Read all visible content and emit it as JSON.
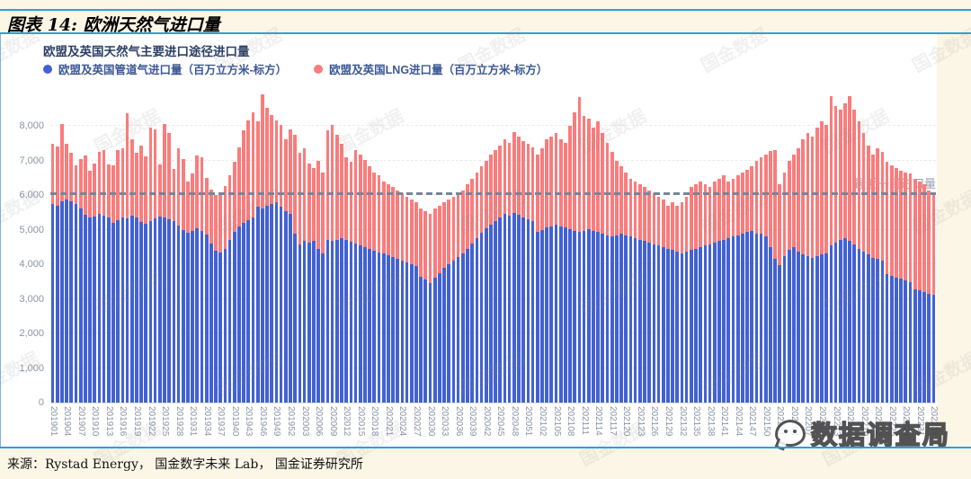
{
  "page": {
    "figure_label": "图表 14: 欧洲天然气进口量",
    "source_line": "来源：Rystad Energy， 国金数字未来 Lab， 国金证券研究所",
    "watermark_tile": "国金数据",
    "watermark_badge": "数据调查局"
  },
  "chart": {
    "subtitle": "欧盟及英国天然气主要进口途径进口量",
    "reference_line": {
      "label": "最近一周进口量",
      "value": 6000
    }
  },
  "chart_data": {
    "type": "bar",
    "stacked": true,
    "title": "欧盟及英国天然气主要进口途径进口量",
    "xlabel": "",
    "ylabel": "",
    "ylim": [
      0,
      9000
    ],
    "yticks": [
      0,
      1000,
      2000,
      3000,
      4000,
      5000,
      6000,
      7000,
      8000
    ],
    "ytick_labels": [
      "0",
      "1,000",
      "2,000",
      "3,000",
      "4,000",
      "5,000",
      "6,000",
      "7,000",
      "8,000"
    ],
    "xtick_every": 3,
    "grid": "dashed-horizontal",
    "legend_position": "top-left",
    "reference_line_y": 6000,
    "categories": [
      201901,
      201902,
      201903,
      201904,
      201905,
      201906,
      201907,
      201908,
      201909,
      201910,
      201911,
      201912,
      201913,
      201914,
      201915,
      201916,
      201917,
      201918,
      201919,
      201920,
      201921,
      201922,
      201923,
      201924,
      201925,
      201926,
      201927,
      201928,
      201929,
      201930,
      201931,
      201932,
      201933,
      201934,
      201935,
      201936,
      201937,
      201938,
      201939,
      201940,
      201941,
      201942,
      201943,
      201944,
      201945,
      201946,
      201947,
      201948,
      201949,
      201950,
      201951,
      201952,
      202001,
      202002,
      202003,
      202004,
      202005,
      202006,
      202007,
      202008,
      202009,
      202010,
      202011,
      202012,
      202013,
      202014,
      202015,
      202016,
      202017,
      202018,
      202019,
      202020,
      202021,
      202022,
      202023,
      202024,
      202025,
      202026,
      202027,
      202028,
      202029,
      202030,
      202031,
      202032,
      202033,
      202034,
      202035,
      202036,
      202037,
      202038,
      202039,
      202040,
      202041,
      202042,
      202043,
      202044,
      202045,
      202046,
      202047,
      202048,
      202049,
      202050,
      202051,
      202052,
      202101,
      202102,
      202103,
      202104,
      202105,
      202106,
      202107,
      202108,
      202109,
      202110,
      202111,
      202112,
      202113,
      202114,
      202115,
      202116,
      202117,
      202118,
      202119,
      202120,
      202121,
      202122,
      202123,
      202124,
      202125,
      202126,
      202127,
      202128,
      202129,
      202130,
      202131,
      202132,
      202133,
      202134,
      202135,
      202136,
      202137,
      202138,
      202139,
      202140,
      202141,
      202142,
      202143,
      202144,
      202145,
      202146,
      202147,
      202148,
      202149,
      202150,
      202151,
      202152,
      202201,
      202202,
      202203,
      202204,
      202205,
      202206,
      202207,
      202208,
      202209,
      202210,
      202211,
      202212,
      202213,
      202214,
      202215,
      202216,
      202217,
      202218,
      202219,
      202220,
      202221,
      202222,
      202223,
      202224,
      202225,
      202226,
      202227,
      202228,
      202229,
      202230,
      202231,
      202232,
      202233,
      202234
    ],
    "series": [
      {
        "name": "欧盟及英国管道气进口量（百万立方米-标方）",
        "color": "#4261D4",
        "values": [
          5750,
          5680,
          5810,
          5870,
          5810,
          5750,
          5600,
          5440,
          5340,
          5390,
          5450,
          5400,
          5350,
          5200,
          5280,
          5360,
          5330,
          5400,
          5350,
          5210,
          5180,
          5260,
          5330,
          5390,
          5350,
          5300,
          5240,
          5120,
          5000,
          4900,
          4950,
          5050,
          4950,
          4850,
          4600,
          4400,
          4350,
          4450,
          4700,
          4930,
          5100,
          5190,
          5270,
          5360,
          5660,
          5620,
          5700,
          5750,
          5790,
          5660,
          5530,
          5450,
          4880,
          4580,
          4670,
          4620,
          4670,
          4450,
          4320,
          4710,
          4670,
          4710,
          4750,
          4700,
          4650,
          4600,
          4550,
          4500,
          4450,
          4400,
          4350,
          4300,
          4250,
          4200,
          4150,
          4100,
          4050,
          4000,
          3950,
          3650,
          3550,
          3450,
          3600,
          3750,
          3900,
          4000,
          4100,
          4200,
          4300,
          4450,
          4600,
          4750,
          4900,
          5050,
          5150,
          5250,
          5350,
          5450,
          5400,
          5490,
          5440,
          5360,
          5300,
          5240,
          4930,
          5000,
          5060,
          5100,
          5140,
          5100,
          5060,
          5020,
          4970,
          4930,
          4970,
          5010,
          4970,
          4930,
          4880,
          4840,
          4800,
          4840,
          4880,
          4840,
          4800,
          4750,
          4700,
          4670,
          4620,
          4580,
          4540,
          4500,
          4450,
          4410,
          4360,
          4320,
          4360,
          4410,
          4450,
          4490,
          4540,
          4580,
          4620,
          4670,
          4710,
          4750,
          4800,
          4840,
          4880,
          4930,
          4970,
          4880,
          4880,
          4800,
          4500,
          4150,
          3970,
          4230,
          4410,
          4490,
          4360,
          4280,
          4230,
          4190,
          4230,
          4280,
          4320,
          4540,
          4620,
          4710,
          4750,
          4670,
          4580,
          4450,
          4360,
          4280,
          4190,
          4150,
          4100,
          3710,
          3670,
          3620,
          3580,
          3540,
          3490,
          3280,
          3240,
          3190,
          3150,
          3110
        ]
      },
      {
        "name": "欧盟及英国LNG进口量（百万立方米-标方）",
        "color": "#FA7C7C",
        "values": [
          1740,
          1720,
          2250,
          1610,
          1420,
          1120,
          1450,
          1700,
          1360,
          1530,
          1810,
          1900,
          1530,
          1650,
          2010,
          1990,
          3030,
          2210,
          1860,
          2230,
          1940,
          2690,
          2570,
          1490,
          2700,
          2490,
          1520,
          2230,
          2030,
          1500,
          1670,
          2090,
          2130,
          1650,
          1550,
          1600,
          1700,
          1800,
          1870,
          2030,
          2290,
          2680,
          2900,
          3030,
          2470,
          3290,
          2820,
          2550,
          2380,
          2380,
          2080,
          2460,
          2860,
          2640,
          2680,
          2300,
          2120,
          2550,
          2340,
          3160,
          3370,
          3030,
          2730,
          2390,
          2310,
          2710,
          2620,
          2500,
          2380,
          2260,
          2220,
          2100,
          2060,
          2030,
          1990,
          1950,
          1910,
          1880,
          1840,
          1970,
          1980,
          2000,
          2020,
          1950,
          1890,
          1880,
          1860,
          1850,
          1840,
          1860,
          1880,
          1910,
          1930,
          1950,
          2020,
          2060,
          2090,
          2160,
          2120,
          2340,
          2260,
          2210,
          2180,
          2150,
          2240,
          2350,
          2550,
          2600,
          2650,
          2510,
          2460,
          2980,
          3420,
          3890,
          3330,
          3210,
          2990,
          3200,
          2910,
          2680,
          2460,
          2160,
          1950,
          1820,
          1680,
          1650,
          1610,
          1560,
          1520,
          1470,
          1420,
          1380,
          1250,
          1380,
          1340,
          1470,
          1600,
          1820,
          1860,
          1910,
          1770,
          1650,
          1780,
          1810,
          1860,
          1650,
          1680,
          1730,
          1780,
          1810,
          1860,
          2120,
          2210,
          2370,
          2760,
          3160,
          2340,
          2430,
          2590,
          2680,
          2990,
          3330,
          3560,
          3510,
          3730,
          3850,
          3720,
          4320,
          3940,
          3760,
          3900,
          4200,
          3890,
          3680,
          3430,
          3160,
          2980,
          3200,
          3160,
          3250,
          3200,
          3170,
          3120,
          3120,
          3130,
          3200,
          3160,
          3120,
          2990,
          2890
        ]
      }
    ]
  }
}
